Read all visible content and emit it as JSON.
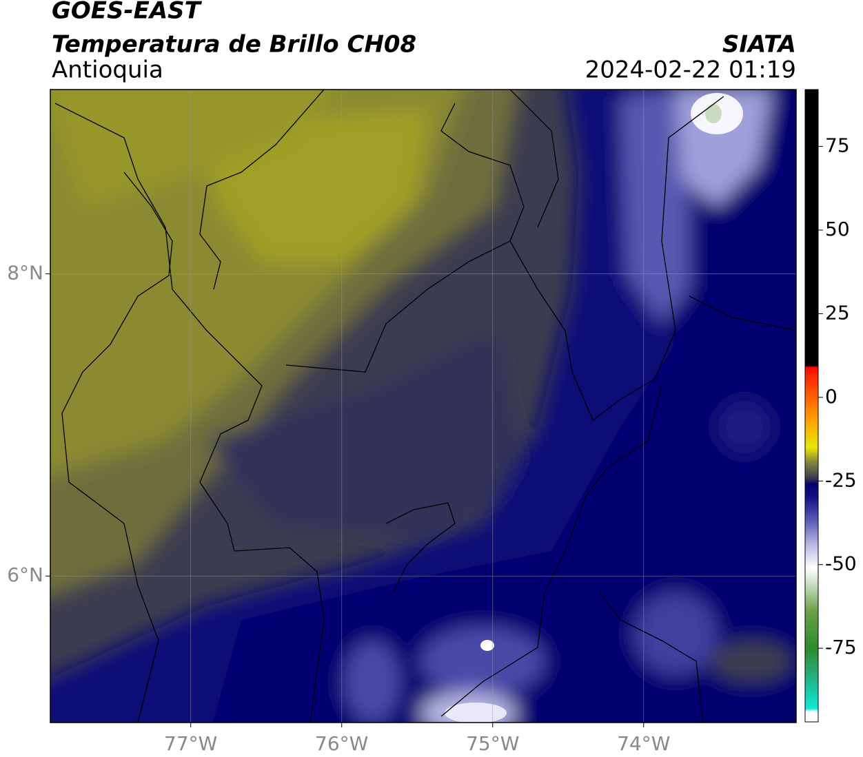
{
  "header": {
    "title": "GOES-EAST",
    "subtitle": "Temperatura de Brillo CH08",
    "region": "Antioquia",
    "source": "SIATA",
    "datetime": "2024-02-22 01:19"
  },
  "map": {
    "xlim": [
      -77.93,
      -72.99
    ],
    "ylim": [
      5.03,
      9.22
    ],
    "xticks": [
      {
        "value": -77,
        "label": "77°W"
      },
      {
        "value": -76,
        "label": "76°W"
      },
      {
        "value": -75,
        "label": "75°W"
      },
      {
        "value": -74,
        "label": "74°W"
      }
    ],
    "yticks": [
      {
        "value": 6,
        "label": "6°N"
      },
      {
        "value": 8,
        "label": "8°N"
      }
    ],
    "grid": true
  },
  "colorbar": {
    "clim": [
      -97,
      92
    ],
    "ticks": [
      75,
      50,
      25,
      0,
      -25,
      -50,
      -75
    ],
    "colormap": [
      {
        "value": -97,
        "color": "#ffffff"
      },
      {
        "value": -94,
        "color": "#ffffff"
      },
      {
        "value": -93,
        "color": "#10e8d8"
      },
      {
        "value": -85,
        "color": "#20b890"
      },
      {
        "value": -75,
        "color": "#2e8a2e"
      },
      {
        "value": -64,
        "color": "#6aa048"
      },
      {
        "value": -56,
        "color": "#c8dcc0"
      },
      {
        "value": -51,
        "color": "#ffffff"
      },
      {
        "value": -44,
        "color": "#b8b8e4"
      },
      {
        "value": -37,
        "color": "#5c5cb4"
      },
      {
        "value": -30,
        "color": "#14148a"
      },
      {
        "value": -26,
        "color": "#000070"
      },
      {
        "value": -24,
        "color": "#3c3c50"
      },
      {
        "value": -19,
        "color": "#8c8c3c"
      },
      {
        "value": -15,
        "color": "#e8e800"
      },
      {
        "value": -6,
        "color": "#ff9a00"
      },
      {
        "value": 7,
        "color": "#ff2000"
      },
      {
        "value": 9,
        "color": "#ff0000"
      },
      {
        "value": 9.5,
        "color": "#000000"
      },
      {
        "value": 92,
        "color": "#000000"
      }
    ]
  }
}
